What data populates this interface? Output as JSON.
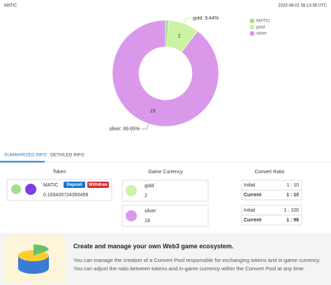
{
  "header": {
    "timestamp": "2023-08-01 08:13:39 UTC"
  },
  "chart_data": {
    "type": "pie",
    "categories": [
      "MATIC",
      "gold",
      "silver"
    ],
    "values": [
      0.193420724350459,
      2,
      19
    ],
    "colors": [
      "#a3df8e",
      "#ccf2a4",
      "#da98eb"
    ],
    "outer_labels": [
      null,
      "gold: 9.44%",
      "silver: 89.65%"
    ]
  },
  "tabs": {
    "items": [
      "SUMMARIZED INFO",
      "DETAILED INFO"
    ],
    "active": 0
  },
  "token": {
    "heading": "Token",
    "buttons": [
      "Deposit",
      "Withdraw"
    ]
  },
  "game_currency": {
    "heading": "Game Currency"
  },
  "convert_ratio": {
    "heading": "Convert Ratio",
    "tables": [
      {
        "rows": [
          [
            "Initial",
            "1 : 10"
          ],
          [
            "Current",
            "1 : 10"
          ]
        ]
      },
      {
        "rows": [
          [
            "Initial",
            "1 : 100"
          ],
          [
            "Current",
            "1 : 98"
          ]
        ]
      }
    ]
  },
  "banner": {
    "title": "Create and manage your own Web3 game ecosystem.",
    "lines": [
      "You can manage the creation of a Convert Pool responsible for exchanging tokens and in-game currency.",
      "You can adjust the ratio between tokens and in-game currency within the Convert Pool at any time."
    ]
  }
}
